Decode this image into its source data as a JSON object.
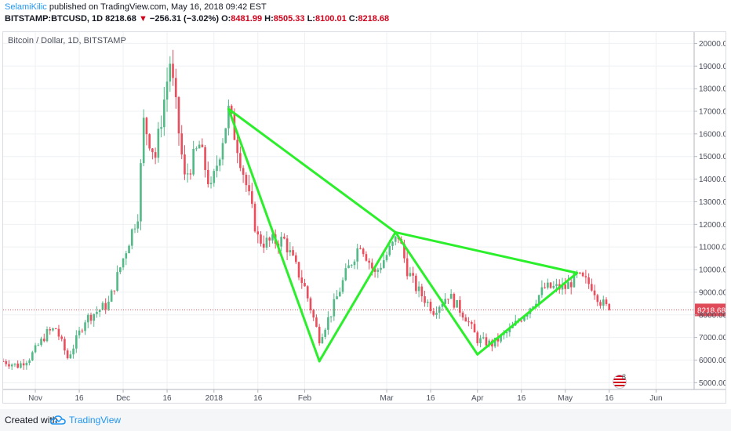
{
  "header": {
    "user": "SelamiKilic",
    "published": "published on TradingView.com, May 16, 2018 09:42 EST",
    "symbol": "BITSTAMP:BTCUSD, 1D",
    "last": "8218.68",
    "arrow": "▼",
    "change": "−256.31 (−3.02%)",
    "open_label": "O:",
    "open": "8481.99",
    "high_label": "H:",
    "high": "8505.33",
    "low_label": "L:",
    "low": "8100.01",
    "close_label": "C:",
    "close": "8218.68"
  },
  "chart_label": "Bitcoin / Dollar, 1D, BITSTAMP",
  "footer": {
    "created": "Created with",
    "brand": "TradingView"
  },
  "colors": {
    "up": "#53b987",
    "down": "#eb4d5c",
    "pattern": "#2aef2a",
    "price_line": "#e04b5a",
    "price_tag": "#e04b5a",
    "grid": "#eef0f3",
    "axis_text": "#4a4f5c"
  },
  "icons": {
    "logo": "tradingview-cloud-icon",
    "events": "us-flag-icon"
  },
  "chart_data": {
    "type": "candlestick",
    "title": "Bitcoin / Dollar, 1D, BITSTAMP",
    "ylim": [
      4700,
      20500
    ],
    "y_ticks": [
      "5000.00",
      "6000.00",
      "7000.00",
      "8000.00",
      "9000.00",
      "10000.00",
      "11000.00",
      "12000.00",
      "13000.00",
      "14000.00",
      "15000.00",
      "16000.00",
      "17000.00",
      "18000.00",
      "19000.00",
      "20000.00"
    ],
    "x_start": "2017-10-21",
    "x_end": "2018-06-14",
    "x_ticks": [
      {
        "date": "2017-11-01",
        "label": "Nov"
      },
      {
        "date": "2017-11-16",
        "label": "16"
      },
      {
        "date": "2017-12-01",
        "label": "Dec"
      },
      {
        "date": "2017-12-16",
        "label": "16"
      },
      {
        "date": "2018-01-01",
        "label": "2018"
      },
      {
        "date": "2018-01-16",
        "label": "16"
      },
      {
        "date": "2018-02-01",
        "label": "Feb"
      },
      {
        "date": "2018-03-01",
        "label": "Mar"
      },
      {
        "date": "2018-03-16",
        "label": "16"
      },
      {
        "date": "2018-04-01",
        "label": "Apr"
      },
      {
        "date": "2018-04-16",
        "label": "16"
      },
      {
        "date": "2018-05-01",
        "label": "May"
      },
      {
        "date": "2018-05-16",
        "label": "16"
      },
      {
        "date": "2018-06-01",
        "label": "Jun"
      }
    ],
    "last_price": 8218.68,
    "last_price_label": "8218.68",
    "price_path": [
      [
        "2017-10-21",
        5950
      ],
      [
        "2017-10-26",
        5750
      ],
      [
        "2017-10-30",
        6100
      ],
      [
        "2017-11-05",
        7200
      ],
      [
        "2017-11-08",
        7400
      ],
      [
        "2017-11-12",
        6100
      ],
      [
        "2017-11-14",
        6600
      ],
      [
        "2017-11-18",
        7800
      ],
      [
        "2017-11-26",
        8500
      ],
      [
        "2017-12-01",
        10500
      ],
      [
        "2017-12-06",
        12500
      ],
      [
        "2017-12-08",
        16500
      ],
      [
        "2017-12-12",
        15000
      ],
      [
        "2017-12-17",
        19200
      ],
      [
        "2017-12-22",
        14000
      ],
      [
        "2017-12-27",
        15500
      ],
      [
        "2017-12-31",
        13500
      ],
      [
        "2018-01-06",
        17000
      ],
      [
        "2018-01-09",
        15500
      ],
      [
        "2018-01-16",
        11400
      ],
      [
        "2018-01-18",
        11200
      ],
      [
        "2018-01-25",
        11300
      ],
      [
        "2018-02-01",
        9200
      ],
      [
        "2018-02-06",
        6950
      ],
      [
        "2018-02-10",
        8100
      ],
      [
        "2018-02-15",
        9800
      ],
      [
        "2018-02-20",
        11200
      ],
      [
        "2018-02-25",
        9800
      ],
      [
        "2018-03-05",
        11500
      ],
      [
        "2018-03-08",
        10000
      ],
      [
        "2018-03-11",
        9200
      ],
      [
        "2018-03-17",
        8200
      ],
      [
        "2018-03-22",
        8900
      ],
      [
        "2018-03-28",
        7900
      ],
      [
        "2018-04-01",
        6900
      ],
      [
        "2018-04-06",
        6700
      ],
      [
        "2018-04-12",
        7300
      ],
      [
        "2018-04-18",
        8200
      ],
      [
        "2018-04-24",
        9200
      ],
      [
        "2018-05-01",
        9200
      ],
      [
        "2018-05-05",
        9700
      ],
      [
        "2018-05-10",
        9300
      ],
      [
        "2018-05-13",
        8600
      ],
      [
        "2018-05-16",
        8218.68
      ]
    ],
    "pattern_lines": [
      [
        [
          "2018-01-06",
          17100
        ],
        [
          "2018-02-06",
          5950
        ]
      ],
      [
        [
          "2018-02-06",
          5950
        ],
        [
          "2018-03-04",
          11650
        ]
      ],
      [
        [
          "2018-03-04",
          11650
        ],
        [
          "2018-04-01",
          6250
        ]
      ],
      [
        [
          "2018-04-01",
          6250
        ],
        [
          "2018-05-05",
          9850
        ]
      ],
      [
        [
          "2018-01-06",
          17100
        ],
        [
          "2018-03-04",
          11650
        ]
      ],
      [
        [
          "2018-03-04",
          11650
        ],
        [
          "2018-05-05",
          9850
        ]
      ]
    ]
  }
}
